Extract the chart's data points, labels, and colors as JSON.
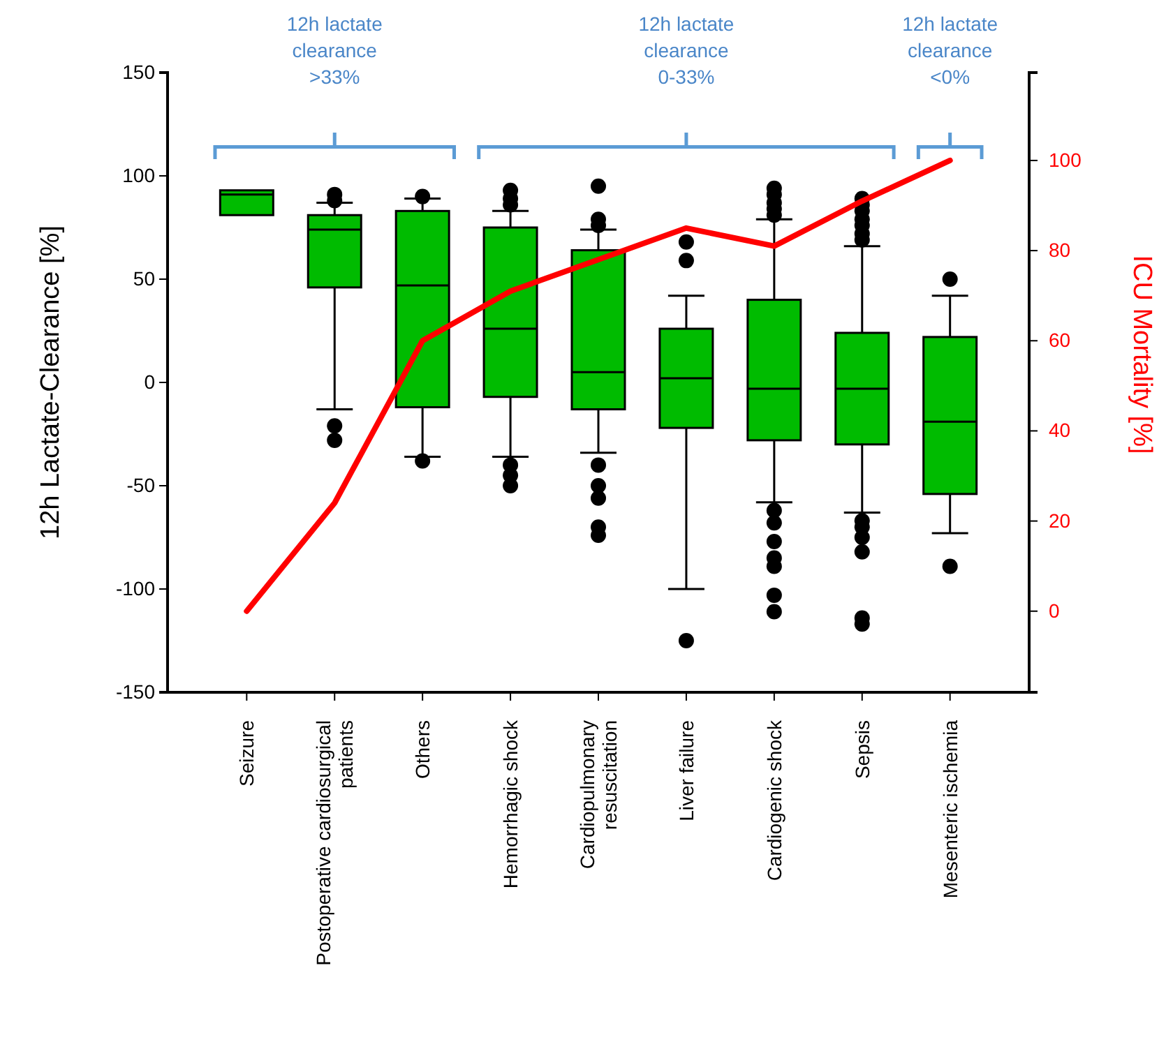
{
  "chart_data": {
    "type": "box",
    "ylabel": "12h Lactate-Clearance [%]",
    "y2label": "ICU Mortality [%]",
    "categories": [
      "Seizure",
      "Postoperative cardiosurgical patients",
      "Others",
      "Hemorrhagic shock",
      "Cardiopulmonary resuscitation",
      "Liver failure",
      "Cardiogenic shock",
      "Sepsis",
      "Mesenteric ischemia"
    ],
    "ylim": [
      -150,
      150
    ],
    "yticks": [
      -150,
      -100,
      -50,
      0,
      50,
      100,
      150
    ],
    "y2lim": [
      -18,
      119.5
    ],
    "y2ticks": [
      0,
      20,
      40,
      60,
      80,
      100
    ],
    "annotations": [
      "12h lactate\nclearance\n>33%",
      "12h lactate\nclearance\n0-33%",
      "12h lactate\nclearance\n<0%"
    ],
    "series": [
      {
        "color": "#00bb00",
        "boxes": [
          {
            "low": 81,
            "q1": 81,
            "median": 91,
            "q3": 93,
            "high": 93
          },
          {
            "low": -13,
            "q1": 46,
            "median": 74,
            "q3": 81,
            "high": 87,
            "outliers": [
              91,
              88,
              -21,
              -28
            ]
          },
          {
            "low": -36,
            "q1": -12,
            "median": 47,
            "q3": 83,
            "high": 89,
            "outliers": [
              90,
              -38
            ]
          },
          {
            "low": -36,
            "q1": -7,
            "median": 26,
            "q3": 75,
            "high": 83,
            "outliers": [
              93,
              89,
              86,
              -40,
              -45,
              -50
            ]
          },
          {
            "low": -34,
            "q1": -13,
            "median": 5,
            "q3": 64,
            "high": 74,
            "outliers": [
              95,
              79,
              76,
              -40,
              -50,
              -56,
              -70,
              -74
            ]
          },
          {
            "low": -100,
            "q1": -22,
            "median": 2,
            "q3": 26,
            "high": 42,
            "outliers": [
              68,
              59,
              -125
            ]
          },
          {
            "low": -58,
            "q1": -28,
            "median": -3,
            "q3": 40,
            "high": 79,
            "outliers": [
              94,
              91,
              87,
              84,
              81,
              -62,
              -68,
              -77,
              -85,
              -89,
              -103,
              -111
            ]
          },
          {
            "low": -63,
            "q1": -30,
            "median": -3,
            "q3": 24,
            "high": 66,
            "outliers": [
              89,
              86,
              83,
              79,
              76,
              72,
              69,
              -67,
              -70,
              -75,
              -82,
              -114,
              -117
            ]
          },
          {
            "low": -73,
            "q1": -54,
            "median": -19,
            "q3": 22,
            "high": 42,
            "outliers": [
              50,
              -89
            ]
          }
        ]
      },
      {
        "type": "line",
        "axis": "y2",
        "color": "#ff0000",
        "values": [
          0,
          24,
          60,
          71,
          78,
          85,
          81,
          91,
          100
        ]
      }
    ],
    "marker": "none"
  }
}
